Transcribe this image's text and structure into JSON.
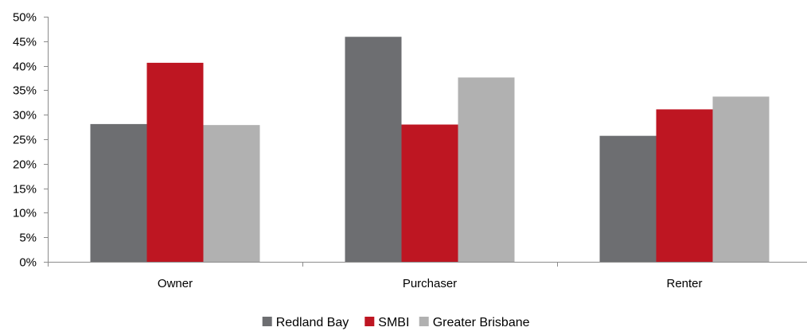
{
  "chart_data": {
    "type": "bar",
    "categories": [
      "Owner",
      "Purchaser",
      "Renter"
    ],
    "series": [
      {
        "name": "Redland Bay",
        "color": "#6d6e71",
        "values": [
          28.1,
          45.9,
          25.7
        ]
      },
      {
        "name": "SMBI",
        "color": "#be1622",
        "values": [
          40.6,
          28.0,
          31.1
        ]
      },
      {
        "name": "Greater Brisbane",
        "color": "#b1b1b1",
        "values": [
          27.9,
          37.6,
          33.7
        ]
      }
    ],
    "ylim": [
      0,
      50
    ],
    "ytick_step": 5,
    "ytick_format": "percent",
    "grid": false,
    "legend_position": "bottom-center"
  }
}
